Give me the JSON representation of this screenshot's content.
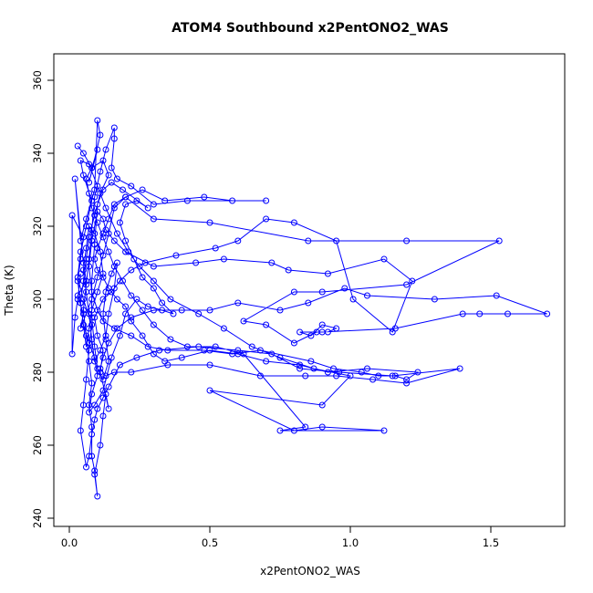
{
  "chart_data": {
    "type": "line",
    "title": "ATOM4 Southbound x2PentONO2_WAS",
    "xlabel": "x2PentONO2_WAS",
    "ylabel": "Theta (K)",
    "xlim": [
      0.0,
      1.75
    ],
    "ylim": [
      240,
      365
    ],
    "x_ticks": [
      0.0,
      0.5,
      1.0,
      1.5
    ],
    "x_tick_labels": [
      "0.0",
      "0.5",
      "1.0",
      "1.5"
    ],
    "y_ticks": [
      240,
      260,
      280,
      300,
      320,
      340,
      360
    ],
    "y_tick_labels": [
      "240",
      "260",
      "280",
      "300",
      "320",
      "340",
      "360"
    ],
    "grid": false,
    "series_color": "#0000ff",
    "markers": "open-circle",
    "points": [
      [
        0.03,
        342
      ],
      [
        0.05,
        340
      ],
      [
        0.08,
        336
      ],
      [
        0.1,
        341
      ],
      [
        0.07,
        332
      ],
      [
        0.11,
        345
      ],
      [
        0.1,
        349
      ],
      [
        0.09,
        330
      ],
      [
        0.06,
        322
      ],
      [
        0.04,
        316
      ],
      [
        0.02,
        333
      ],
      [
        0.05,
        310
      ],
      [
        0.06,
        305
      ],
      [
        0.03,
        301
      ],
      [
        0.05,
        296
      ],
      [
        0.04,
        292
      ],
      [
        0.08,
        300
      ],
      [
        0.1,
        306
      ],
      [
        0.12,
        312
      ],
      [
        0.14,
        318
      ],
      [
        0.16,
        325
      ],
      [
        0.2,
        328
      ],
      [
        0.26,
        330
      ],
      [
        0.34,
        327
      ],
      [
        0.48,
        328
      ],
      [
        0.58,
        327
      ],
      [
        0.7,
        327
      ],
      [
        0.42,
        327
      ],
      [
        0.3,
        326
      ],
      [
        0.22,
        331
      ],
      [
        0.17,
        333
      ],
      [
        0.15,
        336
      ],
      [
        0.16,
        344
      ],
      [
        0.16,
        347
      ],
      [
        0.13,
        341
      ],
      [
        0.11,
        335
      ],
      [
        0.09,
        328
      ],
      [
        0.08,
        319
      ],
      [
        0.07,
        311
      ],
      [
        0.06,
        304
      ],
      [
        0.05,
        297
      ],
      [
        0.06,
        290
      ],
      [
        0.07,
        283
      ],
      [
        0.08,
        277
      ],
      [
        0.07,
        271
      ],
      [
        0.08,
        265
      ],
      [
        0.08,
        257
      ],
      [
        0.09,
        253
      ],
      [
        0.1,
        246
      ],
      [
        0.09,
        252
      ],
      [
        0.11,
        260
      ],
      [
        0.12,
        268
      ],
      [
        0.13,
        274
      ],
      [
        0.14,
        270
      ],
      [
        0.11,
        280
      ],
      [
        0.12,
        286
      ],
      [
        0.1,
        290
      ],
      [
        0.09,
        295
      ],
      [
        0.12,
        300
      ],
      [
        0.15,
        302
      ],
      [
        0.18,
        305
      ],
      [
        0.22,
        308
      ],
      [
        0.27,
        310
      ],
      [
        0.38,
        312
      ],
      [
        0.52,
        314
      ],
      [
        0.6,
        316
      ],
      [
        0.7,
        322
      ],
      [
        0.8,
        321
      ],
      [
        0.95,
        316
      ],
      [
        1.01,
        300
      ],
      [
        1.15,
        291
      ],
      [
        1.22,
        305
      ],
      [
        1.12,
        311
      ],
      [
        0.92,
        307
      ],
      [
        0.78,
        308
      ],
      [
        0.72,
        310
      ],
      [
        0.55,
        311
      ],
      [
        0.45,
        310
      ],
      [
        0.3,
        309
      ],
      [
        0.2,
        313
      ],
      [
        0.16,
        316
      ],
      [
        0.13,
        319
      ],
      [
        0.12,
        322
      ],
      [
        0.1,
        324
      ],
      [
        0.08,
        316
      ],
      [
        0.07,
        309
      ],
      [
        0.08,
        302
      ],
      [
        0.1,
        297
      ],
      [
        0.12,
        294
      ],
      [
        0.16,
        292
      ],
      [
        0.22,
        290
      ],
      [
        0.28,
        287
      ],
      [
        0.35,
        286
      ],
      [
        0.48,
        286
      ],
      [
        0.58,
        285
      ],
      [
        0.68,
        286
      ],
      [
        0.86,
        283
      ],
      [
        0.94,
        281
      ],
      [
        1.04,
        280
      ],
      [
        1.1,
        279
      ],
      [
        1.16,
        279
      ],
      [
        1.2,
        278
      ],
      [
        1.24,
        280
      ],
      [
        1.06,
        281
      ],
      [
        0.92,
        280
      ],
      [
        0.82,
        282
      ],
      [
        0.7,
        283
      ],
      [
        0.6,
        285
      ],
      [
        0.5,
        286
      ],
      [
        0.4,
        284
      ],
      [
        0.34,
        283
      ],
      [
        0.3,
        285
      ],
      [
        0.26,
        290
      ],
      [
        0.22,
        294
      ],
      [
        0.2,
        298
      ],
      [
        0.17,
        300
      ],
      [
        0.14,
        303
      ],
      [
        0.12,
        306
      ],
      [
        0.1,
        308
      ],
      [
        0.09,
        311
      ],
      [
        0.1,
        314
      ],
      [
        0.12,
        318
      ],
      [
        0.14,
        322
      ],
      [
        0.16,
        326
      ],
      [
        0.2,
        328
      ],
      [
        0.3,
        322
      ],
      [
        0.5,
        321
      ],
      [
        0.85,
        316
      ],
      [
        1.2,
        316
      ],
      [
        1.53,
        316
      ],
      [
        1.2,
        304
      ],
      [
        0.9,
        302
      ],
      [
        0.8,
        302
      ],
      [
        0.62,
        294
      ],
      [
        0.7,
        293
      ],
      [
        0.8,
        288
      ],
      [
        0.88,
        291
      ],
      [
        0.92,
        291
      ],
      [
        0.95,
        292
      ],
      [
        0.9,
        293
      ],
      [
        0.86,
        290
      ],
      [
        0.82,
        291
      ],
      [
        0.9,
        291
      ],
      [
        1.16,
        292
      ],
      [
        1.4,
        296
      ],
      [
        1.46,
        296
      ],
      [
        1.56,
        296
      ],
      [
        1.7,
        296
      ],
      [
        1.52,
        301
      ],
      [
        1.3,
        300
      ],
      [
        1.06,
        301
      ],
      [
        0.98,
        303
      ],
      [
        0.85,
        299
      ],
      [
        0.75,
        297
      ],
      [
        0.6,
        299
      ],
      [
        0.5,
        297
      ],
      [
        0.4,
        297
      ],
      [
        0.3,
        297
      ],
      [
        0.22,
        295
      ],
      [
        0.17,
        292
      ],
      [
        0.14,
        288
      ],
      [
        0.12,
        284
      ],
      [
        0.11,
        281
      ],
      [
        0.13,
        279
      ],
      [
        0.16,
        280
      ],
      [
        0.22,
        280
      ],
      [
        0.35,
        282
      ],
      [
        0.5,
        282
      ],
      [
        0.68,
        279
      ],
      [
        0.84,
        279
      ],
      [
        0.95,
        279
      ],
      [
        1.08,
        278
      ],
      [
        1.2,
        277
      ],
      [
        1.39,
        281
      ],
      [
        1.15,
        279
      ],
      [
        0.96,
        280
      ],
      [
        0.82,
        281
      ],
      [
        0.72,
        285
      ],
      [
        0.6,
        286
      ],
      [
        0.46,
        287
      ],
      [
        0.32,
        286
      ],
      [
        0.24,
        284
      ],
      [
        0.18,
        282
      ],
      [
        0.14,
        276
      ],
      [
        0.12,
        273
      ],
      [
        0.1,
        270
      ],
      [
        0.09,
        267
      ],
      [
        0.08,
        263
      ],
      [
        0.07,
        257
      ],
      [
        0.06,
        254
      ],
      [
        0.04,
        264
      ],
      [
        0.05,
        271
      ],
      [
        0.06,
        278
      ],
      [
        0.07,
        286
      ],
      [
        0.08,
        293
      ],
      [
        0.05,
        300
      ],
      [
        0.03,
        306
      ],
      [
        0.04,
        313
      ],
      [
        0.06,
        320
      ],
      [
        0.08,
        327
      ],
      [
        0.05,
        334
      ],
      [
        0.04,
        338
      ],
      [
        0.07,
        337
      ],
      [
        0.1,
        331
      ],
      [
        0.13,
        325
      ],
      [
        0.17,
        318
      ],
      [
        0.21,
        313
      ],
      [
        0.25,
        309
      ],
      [
        0.3,
        305
      ],
      [
        0.36,
        300
      ],
      [
        0.46,
        296
      ],
      [
        0.55,
        292
      ],
      [
        0.65,
        287
      ],
      [
        0.75,
        284
      ],
      [
        0.87,
        281
      ],
      [
        1.0,
        279
      ],
      [
        0.9,
        271
      ],
      [
        0.5,
        275
      ],
      [
        0.8,
        264
      ],
      [
        0.9,
        265
      ],
      [
        1.12,
        264
      ],
      [
        0.75,
        264
      ],
      [
        0.84,
        265
      ],
      [
        0.62,
        285
      ],
      [
        0.52,
        287
      ],
      [
        0.42,
        287
      ],
      [
        0.36,
        289
      ],
      [
        0.3,
        293
      ],
      [
        0.26,
        297
      ],
      [
        0.22,
        301
      ],
      [
        0.19,
        305
      ],
      [
        0.16,
        309
      ],
      [
        0.14,
        313
      ],
      [
        0.12,
        317
      ],
      [
        0.1,
        321
      ],
      [
        0.08,
        325
      ],
      [
        0.07,
        329
      ],
      [
        0.06,
        333
      ],
      [
        0.08,
        336
      ],
      [
        0.12,
        338
      ],
      [
        0.14,
        334
      ],
      [
        0.11,
        329
      ],
      [
        0.09,
        323
      ],
      [
        0.07,
        317
      ],
      [
        0.06,
        311
      ],
      [
        0.05,
        305
      ],
      [
        0.04,
        299
      ],
      [
        0.05,
        293
      ],
      [
        0.07,
        288
      ],
      [
        0.09,
        284
      ],
      [
        0.1,
        279
      ],
      [
        0.08,
        274
      ],
      [
        0.07,
        269
      ],
      [
        0.09,
        271
      ],
      [
        0.12,
        275
      ],
      [
        0.15,
        284
      ],
      [
        0.18,
        290
      ],
      [
        0.2,
        296
      ],
      [
        0.24,
        300
      ],
      [
        0.28,
        298
      ],
      [
        0.33,
        297
      ],
      [
        0.37,
        296
      ],
      [
        0.33,
        299
      ],
      [
        0.3,
        303
      ],
      [
        0.26,
        306
      ],
      [
        0.23,
        311
      ],
      [
        0.2,
        316
      ],
      [
        0.18,
        321
      ],
      [
        0.2,
        326
      ],
      [
        0.24,
        327
      ],
      [
        0.28,
        325
      ],
      [
        0.19,
        330
      ],
      [
        0.15,
        332
      ],
      [
        0.12,
        330
      ],
      [
        0.1,
        326
      ],
      [
        0.09,
        315
      ],
      [
        0.08,
        305
      ],
      [
        0.08,
        295
      ],
      [
        0.09,
        287
      ],
      [
        0.1,
        281
      ],
      [
        0.12,
        278
      ],
      [
        0.14,
        283
      ],
      [
        0.13,
        289
      ],
      [
        0.12,
        296
      ],
      [
        0.13,
        302
      ],
      [
        0.15,
        307
      ],
      [
        0.17,
        310
      ],
      [
        0.16,
        303
      ],
      [
        0.14,
        296
      ],
      [
        0.13,
        290
      ],
      [
        0.11,
        286
      ],
      [
        0.09,
        283
      ],
      [
        0.08,
        289
      ],
      [
        0.07,
        296
      ],
      [
        0.06,
        302
      ],
      [
        0.05,
        308
      ],
      [
        0.06,
        314
      ],
      [
        0.07,
        320
      ],
      [
        0.09,
        318
      ],
      [
        0.11,
        313
      ],
      [
        0.12,
        307
      ],
      [
        0.1,
        302
      ],
      [
        0.08,
        297
      ],
      [
        0.07,
        292
      ],
      [
        0.06,
        287
      ],
      [
        0.05,
        293
      ],
      [
        0.04,
        299
      ],
      [
        0.03,
        305
      ],
      [
        0.04,
        311
      ],
      [
        0.05,
        317
      ],
      [
        0.01,
        323
      ],
      [
        0.01,
        285
      ],
      [
        0.02,
        295
      ],
      [
        0.03,
        300
      ],
      [
        0.04,
        307
      ]
    ]
  }
}
